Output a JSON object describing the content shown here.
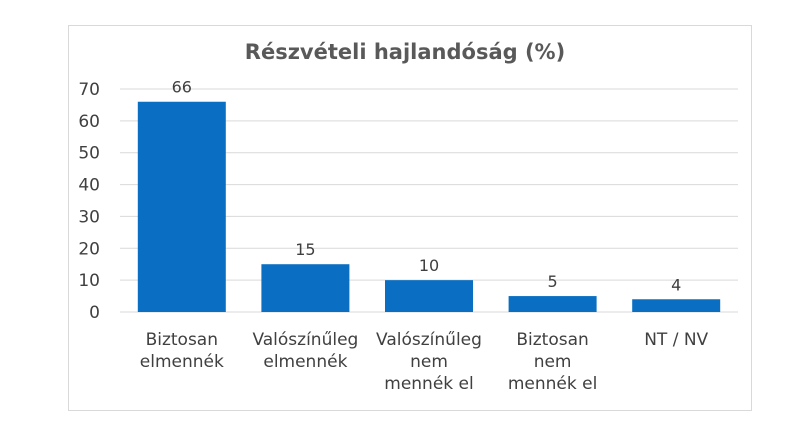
{
  "chart_data": {
    "type": "bar",
    "title": "Részvételi hajlandóság (%)",
    "categories": [
      [
        "Biztosan",
        "elmennék"
      ],
      [
        "Valószínűleg",
        "elmennék"
      ],
      [
        "Valószínűleg",
        "nem",
        "mennék el"
      ],
      [
        "Biztosan",
        "nem",
        "mennék el"
      ],
      [
        "NT / NV"
      ]
    ],
    "values": [
      66,
      15,
      10,
      5,
      4
    ],
    "value_labels": [
      "66",
      "15",
      "10",
      "5",
      "4"
    ],
    "ylim": [
      0,
      70
    ],
    "yticks": [
      0,
      10,
      20,
      30,
      40,
      50,
      60,
      70
    ],
    "grid": true,
    "bar_color": "#0a6fc2",
    "grid_color": "#d9d9d9"
  }
}
